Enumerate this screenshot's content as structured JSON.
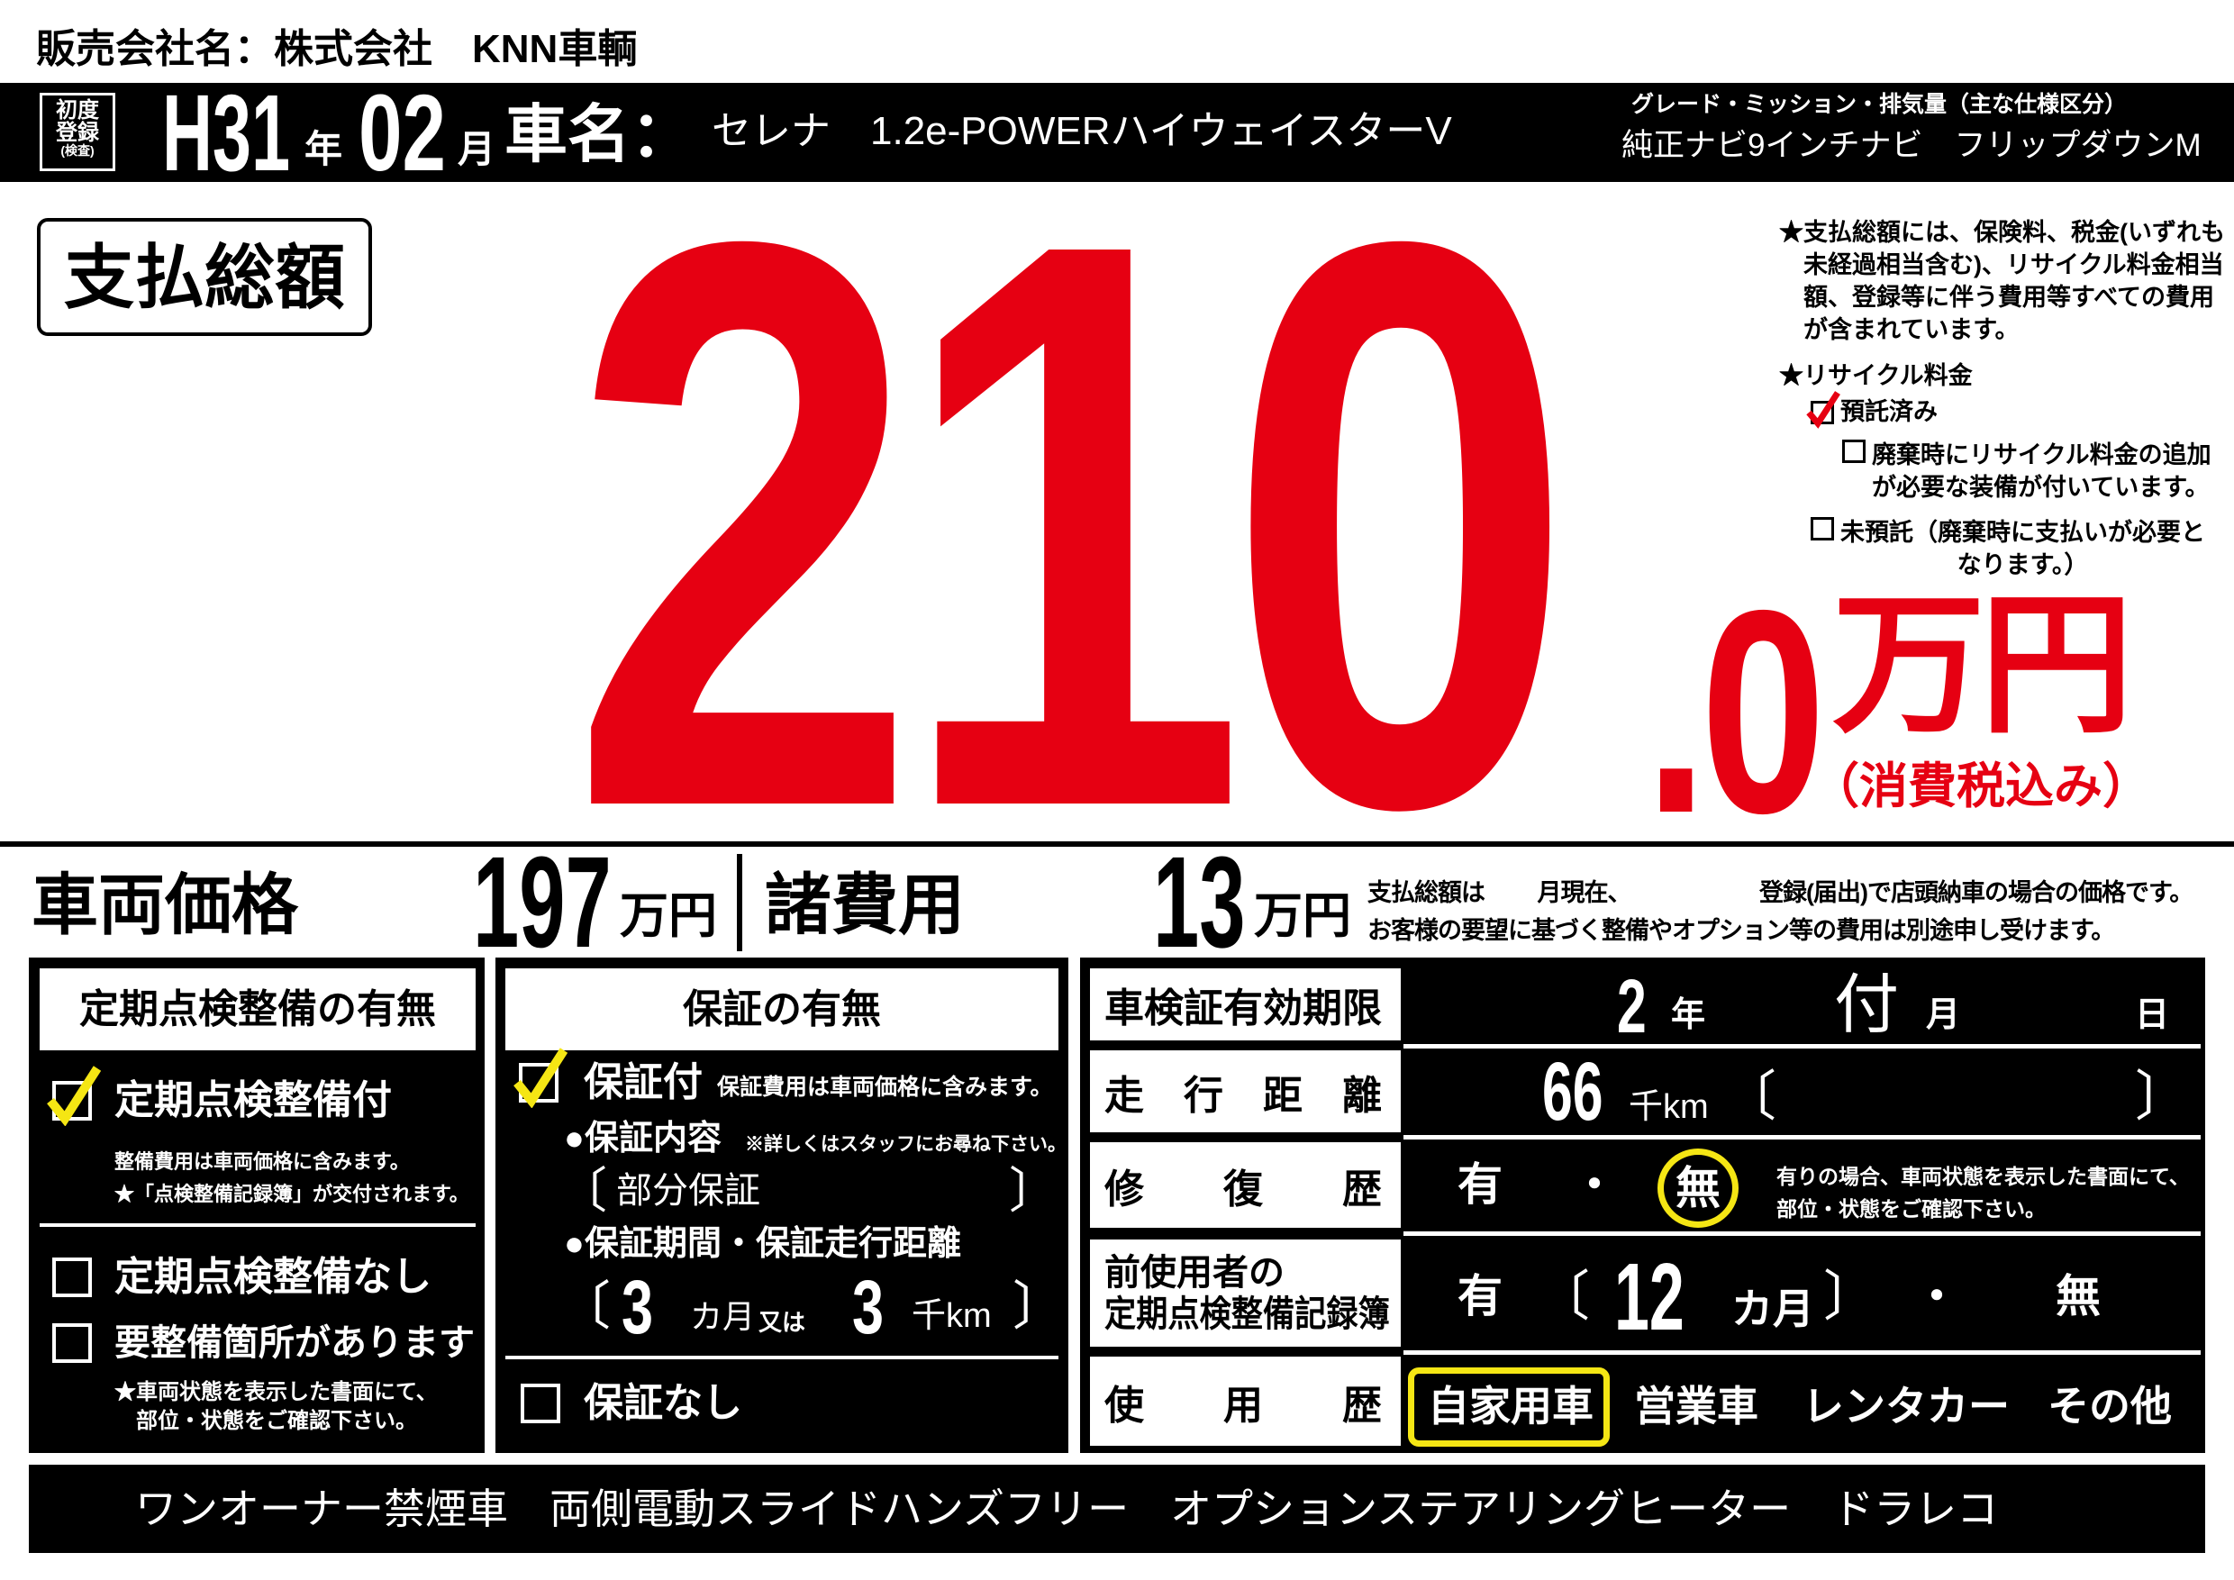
{
  "company": "販売会社名：株式会社　KNN車輌",
  "header": {
    "first_reg_label": [
      "初度",
      "登録",
      "(検査)"
    ],
    "year": "H31",
    "year_unit": "年",
    "month": "02",
    "month_unit": "月",
    "car_name_label": "車名：",
    "car_name": "セレナ　1.2e-POWERハイウェイスターV",
    "grade_label": "グレード・ミッション・排気量（主な仕様区分）",
    "grade_value": "純正ナビ9インチナビ　フリップダウンM"
  },
  "total": {
    "label": "支払総額",
    "integer": "210",
    "decimal": ".0",
    "unit": "万円",
    "tax_note": "（消費税込み）"
  },
  "notes": {
    "total_note": [
      "★支払総額には、保険料、税金(いずれも",
      "未経過相当含む)、リサイクル料金相当",
      "額、登録等に伴う費用等すべての費用",
      "が含まれています。"
    ],
    "recycle_label": "★リサイクル料金",
    "recycle_options": [
      {
        "label": "預託済み",
        "checked": true
      },
      {
        "label": "廃棄時にリサイクル料金の追加",
        "label2": "が必要な装備が付いています。",
        "checked": false
      },
      {
        "label": "未預託（廃棄時に支払いが必要と",
        "label2": "なります。）",
        "checked": false
      }
    ]
  },
  "price": {
    "vehicle_label": "車両価格",
    "vehicle_value": "197",
    "vehicle_unit": "万円",
    "fees_label": "諸費用",
    "fees_value": "13",
    "fees_unit": "万円",
    "disclaimer": [
      "支払総額は　　 月現在、　　　　　　登録(届出)で店頭納車の場合の価格です。",
      "お客様の要望に基づく整備やオプション等の費用は別途申し受けます。"
    ]
  },
  "maintenance": {
    "title": "定期点検整備の有無",
    "with": {
      "label": "定期点検整備付",
      "checked": true,
      "notes": [
        "整備費用は車両価格に含みます。",
        "★「点検整備記録簿」が交付されます。"
      ]
    },
    "without": {
      "label": "定期点検整備なし",
      "checked": false
    },
    "needs": {
      "label": "要整備箇所があります",
      "checked": false,
      "notes": [
        "★車両状態を表示した書面にて、",
        "部位・状態をご確認下さい。"
      ]
    }
  },
  "warranty": {
    "title": "保証の有無",
    "with": {
      "label": "保証付",
      "checked": true,
      "note": "保証費用は車両価格に含みます。"
    },
    "content_label": "●保証内容",
    "content_note": "※詳しくはスタッフにお尋ね下さい。",
    "content_value": "部分保証",
    "period_label": "●保証期間・保証走行距離",
    "months": "3",
    "months_unit": "カ月",
    "or": "又は",
    "distance": "3",
    "distance_unit": "千km",
    "without": {
      "label": "保証なし",
      "checked": false
    }
  },
  "details": {
    "inspection": {
      "label": "車検証有効期限",
      "year": "2",
      "year_unit": "年",
      "month": "付",
      "month_unit": "月",
      "day_unit": "日"
    },
    "mileage": {
      "label": "走　行　距　離",
      "value": "66",
      "unit": "千km"
    },
    "repair": {
      "label": "修　　復　　歴",
      "yes": "有",
      "dot": "・",
      "no": "無",
      "selected": "無",
      "note": [
        "有りの場合、車両状態を表示した書面にて、",
        "部位・状態をご確認下さい。"
      ]
    },
    "records": {
      "label1": "前使用者の",
      "label2": "定期点検整備記録簿",
      "yes": "有",
      "months": "12",
      "months_unit": "カ月",
      "dot": "・",
      "no": "無"
    },
    "usage": {
      "label": "使　　用　　歴",
      "options": [
        "自家用車",
        "営業車",
        "レンタカー",
        "その他"
      ],
      "selected": "自家用車"
    }
  },
  "features": "ワンオーナー禁煙車　両側電動スライドハンズフリー　オプションステアリングヒーター　ドラレコ",
  "colors": {
    "price_red": "#e60012",
    "check_yellow": "#f5e614",
    "check_red": "#e60012",
    "background": "#000000"
  }
}
